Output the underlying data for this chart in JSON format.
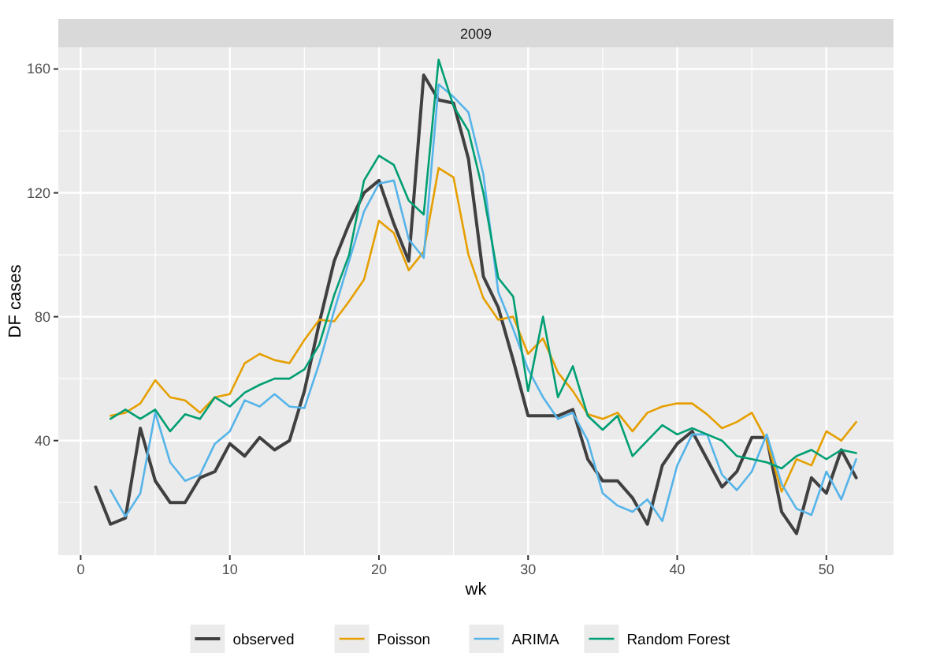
{
  "chart_data": {
    "type": "line",
    "title": "2009",
    "xlabel": "wk",
    "ylabel": "DF cases",
    "x": [
      1,
      2,
      3,
      4,
      5,
      6,
      7,
      8,
      9,
      10,
      11,
      12,
      13,
      14,
      15,
      16,
      17,
      18,
      19,
      20,
      21,
      22,
      23,
      24,
      25,
      26,
      27,
      28,
      29,
      30,
      31,
      32,
      33,
      34,
      35,
      36,
      37,
      38,
      39,
      40,
      41,
      42,
      43,
      44,
      45,
      46,
      47,
      48,
      49,
      50,
      51,
      52
    ],
    "xlim": [
      -1.5,
      54.5
    ],
    "xticks": [
      0,
      10,
      20,
      30,
      40,
      50
    ],
    "ylim": [
      3,
      167
    ],
    "yticks": [
      40,
      80,
      120,
      160
    ],
    "grid": true,
    "legend": "bottom",
    "marker": "none",
    "line_style": "solid",
    "series": [
      {
        "name": "observed",
        "color": "#404040",
        "values": [
          25,
          13,
          15,
          44,
          27,
          20,
          20,
          28,
          30,
          39,
          35,
          41,
          37,
          40,
          56,
          78,
          98,
          110,
          120,
          124,
          110,
          98,
          158,
          150,
          149,
          131,
          93,
          83,
          66,
          48,
          48,
          48,
          50,
          34,
          27,
          27,
          21.5,
          13,
          32,
          39,
          43,
          34,
          25,
          30,
          41,
          41,
          17,
          10,
          28,
          23,
          37,
          28
        ]
      },
      {
        "name": "Poisson",
        "color": "#e69f00",
        "values": [
          null,
          48,
          49,
          52,
          59.5,
          54,
          53,
          49,
          54,
          55,
          65,
          68,
          66,
          65,
          72.5,
          79,
          78.5,
          85,
          92,
          111,
          107,
          95,
          101,
          128,
          125,
          100,
          86,
          79,
          80,
          68,
          73,
          62,
          56,
          48.5,
          47,
          49,
          43,
          49,
          51,
          52,
          52,
          48.5,
          44,
          46,
          49,
          40,
          23.5,
          34,
          32,
          43,
          40,
          46
        ]
      },
      {
        "name": "ARIMA",
        "color": "#56b4e9",
        "values": [
          null,
          24,
          15.5,
          23,
          49,
          33,
          27,
          29,
          39,
          43,
          53,
          51,
          55,
          51,
          50.5,
          65,
          82,
          98,
          114,
          123,
          124,
          105,
          99,
          155,
          151,
          146,
          126,
          88,
          76,
          63,
          54,
          47,
          49,
          40,
          23,
          19,
          17,
          21,
          14,
          32,
          42,
          42,
          29,
          24,
          30,
          42,
          26,
          18,
          16,
          30,
          21,
          34
        ]
      },
      {
        "name": "Random Forest",
        "color": "#009e73",
        "values": [
          null,
          47,
          50,
          47,
          50,
          43,
          48.5,
          47,
          54,
          51,
          55.5,
          58,
          60,
          60,
          63,
          71,
          87,
          100,
          124,
          132,
          129,
          117.5,
          113,
          163,
          148,
          140,
          120,
          92.5,
          86.5,
          56,
          80,
          54,
          64,
          48,
          43.5,
          48,
          35,
          40,
          45,
          42,
          44,
          42,
          40,
          35,
          34,
          33,
          31,
          35,
          37,
          34,
          37,
          36
        ]
      }
    ]
  }
}
